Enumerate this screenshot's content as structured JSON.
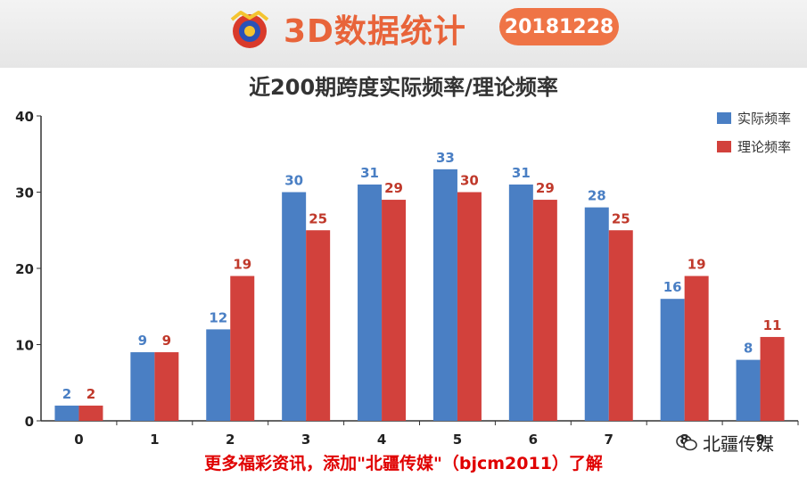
{
  "header": {
    "logo_icon": "3d-lottery-logo",
    "brand_title": "3D数据统计",
    "date_badge": "20181228"
  },
  "chart_data": {
    "type": "bar",
    "title": "近200期跨度实际频率/理论频率",
    "xlabel": "",
    "ylabel": "",
    "categories": [
      "0",
      "1",
      "2",
      "3",
      "4",
      "5",
      "6",
      "7",
      "8",
      "9"
    ],
    "series": [
      {
        "name": "实际频率",
        "color": "#4a7fc4",
        "label_color": "#4a7fc4",
        "values": [
          2,
          9,
          12,
          30,
          31,
          33,
          31,
          28,
          16,
          8
        ]
      },
      {
        "name": "理论频率",
        "color": "#d2413c",
        "label_color": "#c0392b",
        "values": [
          2,
          9,
          19,
          25,
          29,
          30,
          29,
          25,
          19,
          11
        ]
      }
    ],
    "ylim": [
      0,
      40
    ],
    "yticks": [
      0,
      10,
      20,
      30,
      40
    ],
    "grid": false,
    "legend_position": "top-right"
  },
  "footer": {
    "note": "更多福彩资讯，添加\"北疆传媒\"（bjcm2011）了解"
  },
  "watermark": {
    "icon": "wechat-icon",
    "text": "北疆传媒"
  }
}
